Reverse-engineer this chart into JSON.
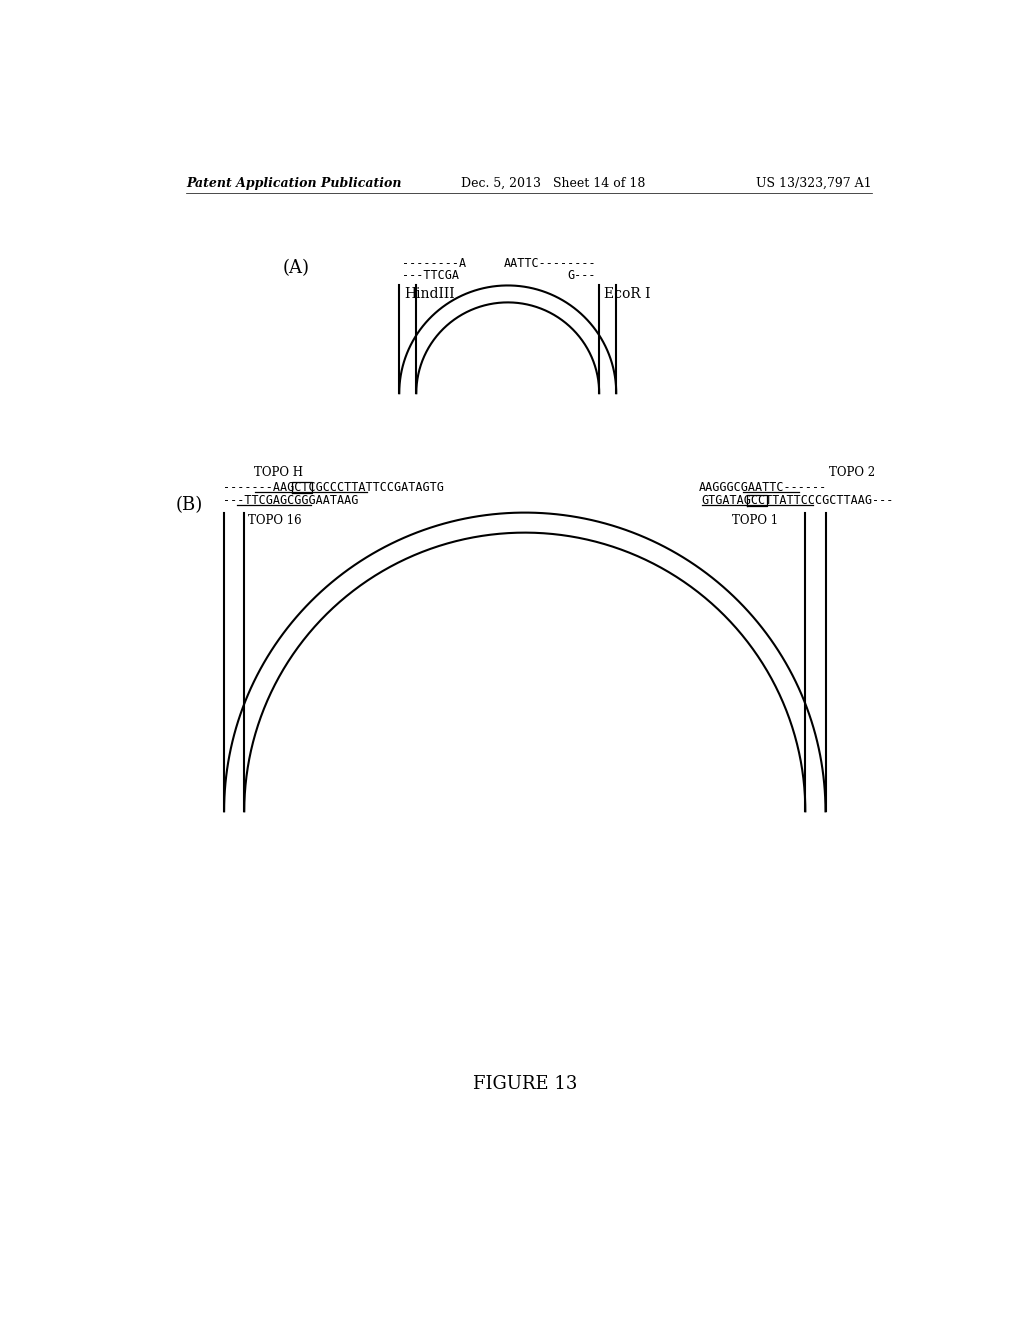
{
  "background_color": "#ffffff",
  "header_left": "Patent Application Publication",
  "header_mid": "Dec. 5, 2013   Sheet 14 of 18",
  "header_right": "US 13/323,797 A1",
  "panel_A_label": "(A)",
  "panel_B_label": "(B)",
  "figure_label": "FIGURE 13",
  "A_left_line1": "--------A",
  "A_left_line2": "---TTCGA",
  "A_left_label": "HindIII",
  "A_right_line1": "AATTC--------",
  "A_right_line2": "G---",
  "A_right_label": "EcoR I",
  "B_left_label": "TOPO H",
  "B_left_seq1": "-------AAGCTCGCCCTTATTCCGATAGTG",
  "B_left_seq2": "---TTCGAGCGGGAATAAG",
  "B_left_sublabel": "TOPO 16",
  "B_right_label": "TOPO 2",
  "B_right_seq1": "AAGGGCGAATTC------",
  "B_right_seq2": "GTGATAGCCTTATTCCCGCTTAAG---",
  "B_right_sublabel": "TOPO 1",
  "font_size_header": 9,
  "font_size_label": 10,
  "font_size_seq": 8.5,
  "font_size_panel": 13,
  "font_size_figure": 13
}
